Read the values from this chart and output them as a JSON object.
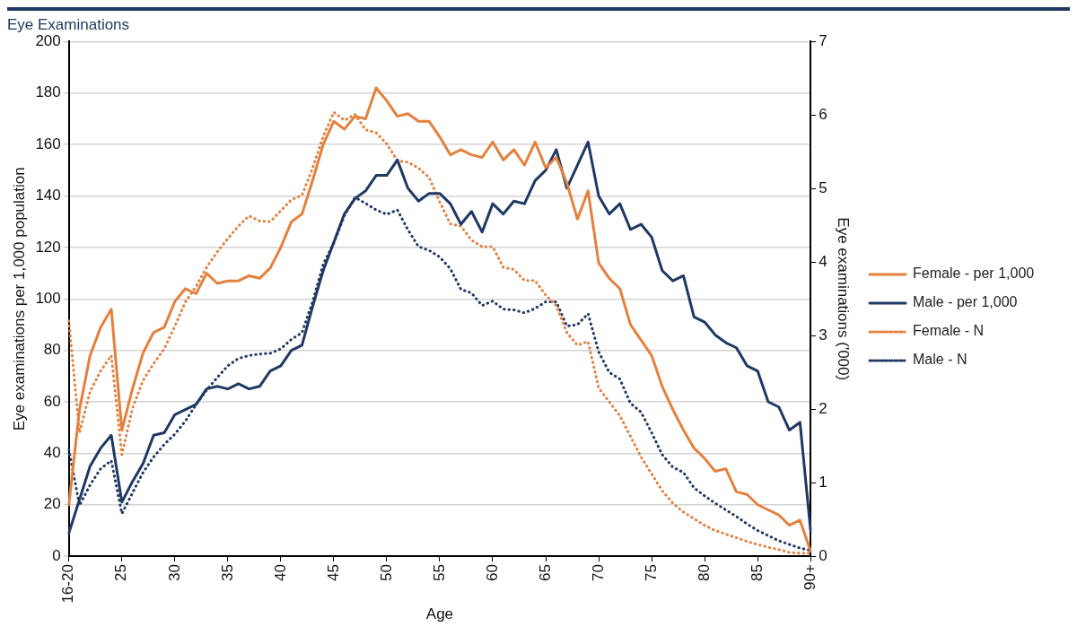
{
  "chart_data": {
    "type": "line",
    "title": "Eye Examinations",
    "xlabel": "Age",
    "ylabel": "Eye examinations per 1,000 population",
    "y2label": "Eye examinations ('000)",
    "categories": [
      "16-20",
      null,
      null,
      null,
      null,
      "25",
      null,
      null,
      null,
      null,
      "30",
      null,
      null,
      null,
      null,
      "35",
      null,
      null,
      null,
      null,
      "40",
      null,
      null,
      null,
      null,
      "45",
      null,
      null,
      null,
      null,
      "50",
      null,
      null,
      null,
      null,
      "55",
      null,
      null,
      null,
      null,
      "60",
      null,
      null,
      null,
      null,
      "65",
      null,
      null,
      null,
      null,
      "70",
      null,
      null,
      null,
      null,
      "75",
      null,
      null,
      null,
      null,
      "80",
      null,
      null,
      null,
      null,
      "85",
      null,
      null,
      null,
      null,
      "90+"
    ],
    "ylim": [
      0,
      200
    ],
    "yticks": [
      0,
      20,
      40,
      60,
      80,
      100,
      120,
      140,
      160,
      180,
      200
    ],
    "y2lim": [
      0,
      7
    ],
    "y2ticks": [
      0,
      1,
      2,
      3,
      4,
      5,
      6,
      7
    ],
    "grid": "y",
    "legend": "right",
    "marker": "none",
    "series": [
      {
        "name": "Female - per 1,000",
        "color": "#e5803e",
        "line_style": "solid",
        "values": [
          20,
          57,
          78,
          89,
          96,
          49,
          65,
          79,
          87,
          89,
          99,
          104,
          102,
          110,
          106,
          107,
          107,
          109,
          108,
          112,
          120,
          130,
          133,
          146,
          160,
          169,
          166,
          171,
          170,
          182,
          177,
          171,
          172,
          169,
          169,
          163,
          156,
          158,
          156,
          155,
          161,
          154,
          158,
          152,
          161,
          151,
          155,
          145,
          131,
          142,
          114,
          108,
          104,
          90,
          84,
          78,
          66,
          57,
          49,
          42,
          38,
          33,
          34,
          25,
          24,
          20,
          18,
          16,
          12,
          14,
          2
        ]
      },
      {
        "name": "Male - per 1,000",
        "color": "#1f3864",
        "line_style": "solid",
        "values": [
          9,
          22,
          35,
          42,
          47,
          21,
          29,
          36,
          47,
          48,
          55,
          57,
          59,
          65,
          66,
          65,
          67,
          65,
          66,
          72,
          74,
          80,
          82,
          97,
          111,
          122,
          133,
          139,
          142,
          148,
          148,
          154,
          143,
          138,
          141,
          141,
          137,
          129,
          134,
          126,
          137,
          133,
          138,
          137,
          146,
          150,
          158,
          143,
          152,
          161,
          140,
          133,
          137,
          127,
          129,
          124,
          111,
          107,
          109,
          93,
          91,
          86,
          83,
          81,
          74,
          72,
          60,
          58,
          49,
          52,
          10
        ]
      },
      {
        "name": "Female - N",
        "color": "#e5803e",
        "line_style": "dotted",
        "axis": "y2",
        "values": [
          3.2,
          1.68,
          2.24,
          2.52,
          2.73,
          1.38,
          2.01,
          2.39,
          2.62,
          2.82,
          3.13,
          3.46,
          3.67,
          3.93,
          4.14,
          4.32,
          4.49,
          4.63,
          4.56,
          4.55,
          4.7,
          4.85,
          4.91,
          5.28,
          5.71,
          6.04,
          5.93,
          6.01,
          5.8,
          5.76,
          5.61,
          5.38,
          5.36,
          5.28,
          5.15,
          4.82,
          4.52,
          4.49,
          4.3,
          4.21,
          4.21,
          3.93,
          3.9,
          3.75,
          3.75,
          3.55,
          3.41,
          3.04,
          2.87,
          2.92,
          2.29,
          2.1,
          1.91,
          1.63,
          1.35,
          1.12,
          0.89,
          0.72,
          0.6,
          0.51,
          0.42,
          0.35,
          0.3,
          0.25,
          0.2,
          0.16,
          0.12,
          0.09,
          0.05,
          0.04,
          0.04
        ]
      },
      {
        "name": "Male - N",
        "color": "#1f3864",
        "line_style": "dotted",
        "axis": "y2",
        "values": [
          1.45,
          0.69,
          0.97,
          1.19,
          1.3,
          0.58,
          0.86,
          1.14,
          1.35,
          1.52,
          1.66,
          1.84,
          2.06,
          2.26,
          2.43,
          2.59,
          2.69,
          2.73,
          2.75,
          2.76,
          2.82,
          2.95,
          3.04,
          3.46,
          3.97,
          4.26,
          4.63,
          4.88,
          4.8,
          4.71,
          4.65,
          4.71,
          4.44,
          4.21,
          4.16,
          4.07,
          3.91,
          3.63,
          3.58,
          3.41,
          3.47,
          3.36,
          3.35,
          3.31,
          3.37,
          3.46,
          3.46,
          3.13,
          3.15,
          3.3,
          2.78,
          2.5,
          2.41,
          2.08,
          1.96,
          1.68,
          1.38,
          1.21,
          1.14,
          0.93,
          0.82,
          0.72,
          0.63,
          0.54,
          0.44,
          0.35,
          0.28,
          0.21,
          0.16,
          0.11,
          0.08
        ]
      }
    ]
  }
}
